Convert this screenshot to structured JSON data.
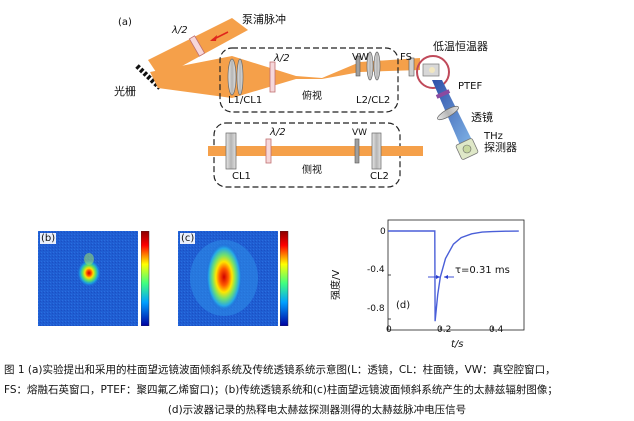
{
  "panel_a": {
    "letter": "(a)",
    "pump_pulse": "泵浦脉冲",
    "half_wave_top": "λ/2",
    "grating": "光栅",
    "half_wave_mid": "λ/2",
    "vw_top": "VW",
    "fs": "FS",
    "cryostat": "低温恒温器",
    "ptef": "PTEF",
    "l1cl1": "L1/CL1",
    "top_view": "俯视",
    "l2cl2": "L2/CL2",
    "lens": "透镜",
    "thz": "THz",
    "detector": "探测器",
    "cl1": "CL1",
    "half_wave_bottom": "λ/2",
    "vw_bottom": "VW",
    "side_view": "侧视",
    "cl2": "CL2"
  },
  "panel_b": {
    "letter": "(b)"
  },
  "panel_c": {
    "letter": "(c)"
  },
  "panel_d": {
    "letter": "(d)",
    "ylabel": "强度/V",
    "xlabel": "t/s",
    "annotation": "τ=0.31 ms",
    "xticks": [
      "0",
      "0.2",
      "0.4"
    ],
    "yticks": [
      "0",
      "-0.4",
      "-0.8"
    ]
  },
  "chart_data": {
    "type": "line",
    "xlabel": "t/s",
    "ylabel": "强度/V",
    "xlim": [
      0,
      0.52
    ],
    "ylim": [
      -0.9,
      0.1
    ],
    "series": [
      {
        "x": [
          0,
          0.05,
          0.1,
          0.15,
          0.179,
          0.18,
          0.19,
          0.2,
          0.22,
          0.25,
          0.28,
          0.32,
          0.36,
          0.4,
          0.45,
          0.5
        ],
        "y": [
          0,
          0,
          0,
          0,
          0,
          -0.82,
          -0.58,
          -0.42,
          -0.25,
          -0.12,
          -0.06,
          -0.025,
          -0.01,
          -0.005,
          -0.002,
          -0.001
        ]
      }
    ],
    "annotation": {
      "text": "τ=0.31 ms"
    },
    "color": "#4a5fd8"
  },
  "caption": {
    "line1": "图 1   (a)实验提出和采用的柱面望远镜波面倾斜系统及传统透镜系统示意图(L：透镜，CL：柱面镜，VW：真空腔窗口，",
    "line2": "FS：熔融石英窗口，PTEF：聚四氟乙烯窗口)；(b)传统透镜系统和(c)柱面望远镜波面倾斜系统产生的太赫兹辐射图像；",
    "line3": "(d)示波器记录的热释电太赫兹探测器测得的太赫兹脉冲电压信号"
  }
}
